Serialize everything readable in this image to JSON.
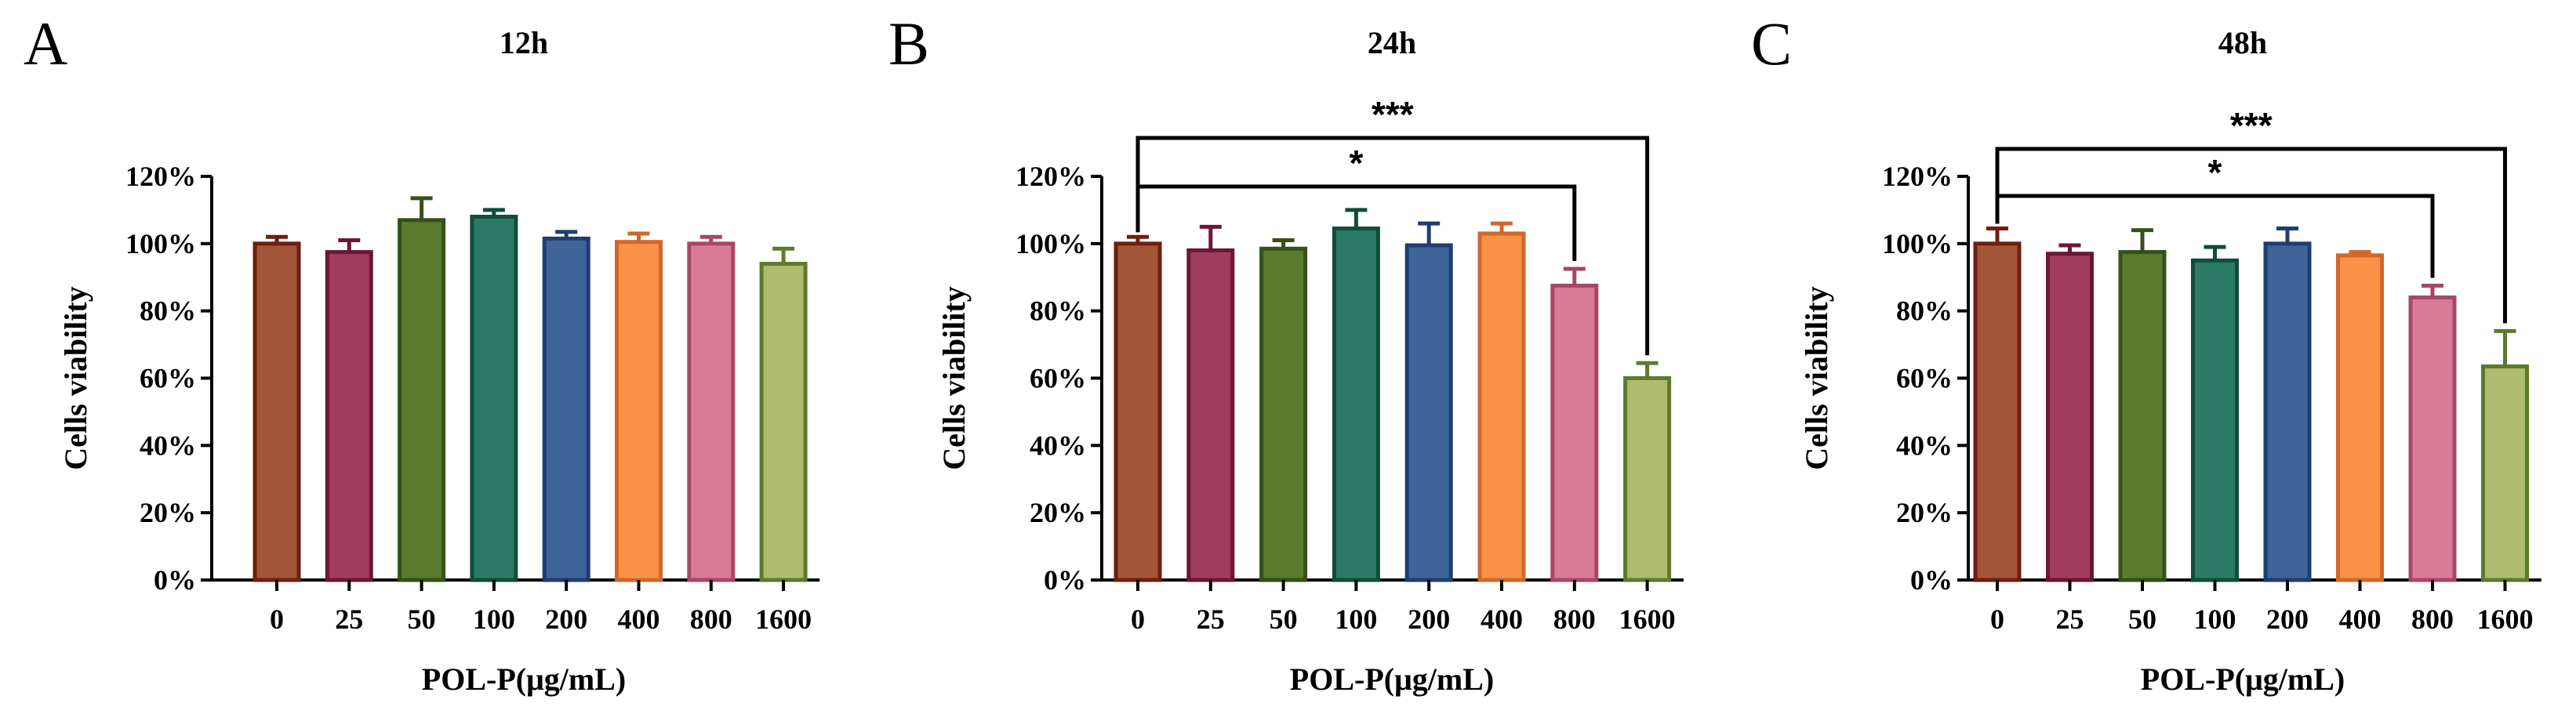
{
  "chart_data": [
    {
      "panel": "A",
      "type": "bar",
      "title": "12h",
      "xlabel": "POL-P(μg/mL)",
      "ylabel": "Cells viability",
      "ylim": [
        0,
        120
      ],
      "yticks": [
        "0%",
        "20%",
        "40%",
        "60%",
        "80%",
        "100%",
        "120%"
      ],
      "categories": [
        "0",
        "25",
        "50",
        "100",
        "200",
        "400",
        "800",
        "1600"
      ],
      "values": [
        100,
        97.5,
        107,
        108,
        101.5,
        100.5,
        100,
        94
      ],
      "errors": [
        2,
        3.5,
        6.5,
        2,
        2,
        2.5,
        2,
        4.5
      ],
      "significance": []
    },
    {
      "panel": "B",
      "type": "bar",
      "title": "24h",
      "xlabel": "POL-P(μg/mL)",
      "ylabel": "Cells viability",
      "ylim": [
        0,
        120
      ],
      "yticks": [
        "0%",
        "20%",
        "40%",
        "60%",
        "80%",
        "100%",
        "120%"
      ],
      "categories": [
        "0",
        "25",
        "50",
        "100",
        "200",
        "400",
        "800",
        "1600"
      ],
      "values": [
        100,
        98,
        98.5,
        104.5,
        99.5,
        103,
        87.5,
        60
      ],
      "errors": [
        2,
        7,
        2.5,
        5.5,
        6.5,
        3,
        5,
        4.5
      ],
      "significance": [
        {
          "from": 0,
          "to": 6,
          "label": "*"
        },
        {
          "from": 0,
          "to": 7,
          "label": "***"
        }
      ]
    },
    {
      "panel": "C",
      "type": "bar",
      "title": "48h",
      "xlabel": "POL-P(μg/mL)",
      "ylabel": "Cells viability",
      "ylim": [
        0,
        120
      ],
      "yticks": [
        "0%",
        "20%",
        "40%",
        "60%",
        "80%",
        "100%",
        "120%"
      ],
      "categories": [
        "0",
        "25",
        "50",
        "100",
        "200",
        "400",
        "800",
        "1600"
      ],
      "values": [
        100,
        97,
        97.5,
        95,
        100,
        96.5,
        84,
        63.5
      ],
      "errors": [
        4.5,
        2.5,
        6.5,
        4,
        4.5,
        1,
        3.5,
        10.5
      ],
      "significance": [
        {
          "from": 0,
          "to": 6,
          "label": "*"
        },
        {
          "from": 0,
          "to": 7,
          "label": "***"
        }
      ]
    }
  ],
  "colors": {
    "fills": [
      "#A4553A",
      "#A03C5E",
      "#5A7A2C",
      "#2A7A66",
      "#3E649A",
      "#F99247",
      "#D97B96",
      "#AFBB6F"
    ],
    "strokes": [
      "#6E1E0E",
      "#6B1638",
      "#36501A",
      "#124C3B",
      "#1F3D6E",
      "#D2672A",
      "#A84667",
      "#5E7A2C"
    ],
    "axis": "#000000"
  }
}
